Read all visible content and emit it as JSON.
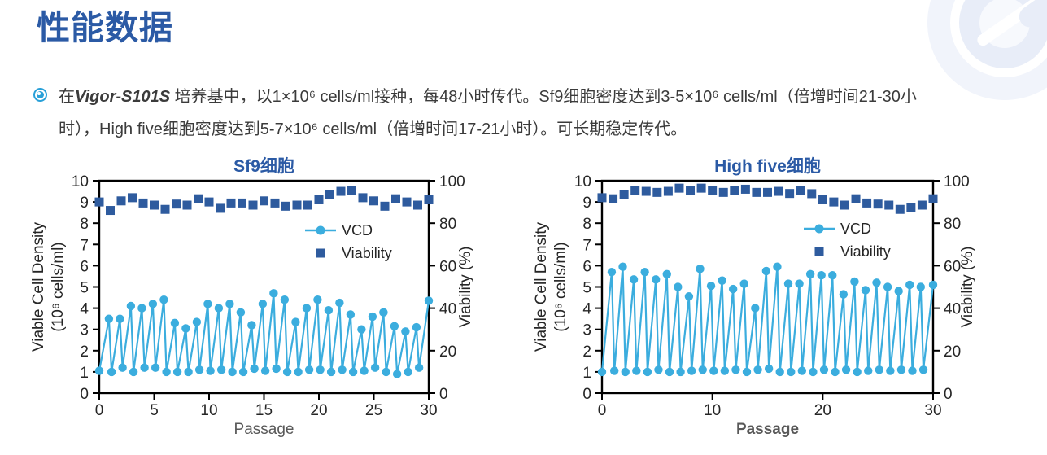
{
  "header": {
    "title": "性能数据"
  },
  "intro": {
    "prefix": "在",
    "brand": "Vigor-S101S",
    "rest": " 培养基中，以1×10⁶ cells/ml接种，每48小时传代。Sf9细胞密度达到3-5×10⁶ cells/ml（倍增时间21-30小时），High five细胞密度达到5-7×10⁶ cells/ml（倍增时间17-21小时）。可长期稳定传代。"
  },
  "colors": {
    "accent_blue": "#2b5aa5",
    "vcd_line": "#3badde",
    "viability_marker": "#2e5b9e",
    "axis": "#000000",
    "tick_label": "#262626",
    "xlabel_gray": "#595959",
    "bullet_icon": "#29a0d8"
  },
  "chart_data": [
    {
      "type": "line",
      "title": "Sf9细胞",
      "xlabel": "Passage",
      "ylabel_left_lines": [
        "Viable Cell Density",
        "(10⁶ cells/ml)"
      ],
      "ylabel_right": "Viability (%)",
      "xlim": [
        0,
        30
      ],
      "ylim_left": [
        0,
        10
      ],
      "ylim_right": [
        0,
        100
      ],
      "xticks": [
        0,
        5,
        10,
        15,
        20,
        25,
        30
      ],
      "yticks_left": [
        0,
        1,
        2,
        3,
        4,
        5,
        6,
        7,
        8,
        9,
        10
      ],
      "yticks_right": [
        0,
        20,
        40,
        60,
        80,
        100
      ],
      "grid": false,
      "legend_position": "inside-right",
      "series": [
        {
          "name": "VCD",
          "type": "line-markers",
          "axis": "left",
          "units": "10⁶ cells/ml",
          "seed_values": [
            1.05,
            1.0,
            1.2,
            1.0,
            1.2,
            1.2,
            1.0,
            1.0,
            1.0,
            1.1,
            1.05,
            1.1,
            1.0,
            1.0,
            1.15,
            1.05,
            1.15,
            1.0,
            1.0,
            1.1,
            1.1,
            1.0,
            1.1,
            1.0,
            1.05,
            1.2,
            1.0,
            0.9,
            1.0,
            1.2
          ],
          "peak_values": [
            3.5,
            3.5,
            4.1,
            4.0,
            4.2,
            4.4,
            3.3,
            3.05,
            3.35,
            4.2,
            4.0,
            4.2,
            3.8,
            3.2,
            4.2,
            4.7,
            4.4,
            3.35,
            4.0,
            4.4,
            3.9,
            4.25,
            3.7,
            3.0,
            3.6,
            3.8,
            3.15,
            2.9,
            3.1,
            4.35
          ]
        },
        {
          "name": "Viability",
          "type": "scatter-squares",
          "axis": "right",
          "units": "%",
          "x": [
            0,
            1,
            2,
            3,
            4,
            5,
            6,
            7,
            8,
            9,
            10,
            11,
            12,
            13,
            14,
            15,
            16,
            17,
            18,
            19,
            20,
            21,
            22,
            23,
            24,
            25,
            26,
            27,
            28,
            29,
            30
          ],
          "values": [
            90,
            86,
            90.5,
            92,
            89.5,
            88.5,
            86.5,
            89,
            88.5,
            91.5,
            90,
            87,
            89.5,
            89.5,
            88.5,
            90.5,
            89.5,
            88,
            88.5,
            88.5,
            91,
            93.5,
            95,
            95.5,
            92,
            90.5,
            88,
            91.5,
            90,
            88.5,
            91
          ]
        }
      ]
    },
    {
      "type": "line",
      "title": "High five细胞",
      "xlabel": "Passage",
      "ylabel_left_lines": [
        "Viable Cell Density",
        "(10⁶ cells/ml)"
      ],
      "ylabel_right": "Viability (%)",
      "xlim": [
        0,
        30
      ],
      "ylim_left": [
        0,
        10
      ],
      "ylim_right": [
        0,
        100
      ],
      "xticks": [
        0,
        10,
        20,
        30
      ],
      "yticks_left": [
        0,
        1,
        2,
        3,
        4,
        5,
        6,
        7,
        8,
        9,
        10
      ],
      "yticks_right": [
        0,
        20,
        40,
        60,
        80,
        100
      ],
      "grid": false,
      "legend_position": "inside-right",
      "series": [
        {
          "name": "VCD",
          "type": "line-markers",
          "axis": "left",
          "units": "10⁶ cells/ml",
          "seed_values": [
            1.0,
            1.05,
            1.0,
            1.05,
            1.0,
            1.1,
            1.0,
            1.0,
            1.05,
            1.1,
            1.05,
            1.05,
            1.1,
            1.0,
            1.1,
            1.15,
            1.0,
            1.0,
            1.05,
            1.0,
            1.1,
            1.0,
            1.1,
            1.0,
            1.05,
            1.1,
            1.05,
            1.1,
            1.05,
            1.1
          ],
          "peak_values": [
            5.7,
            5.95,
            5.35,
            5.7,
            5.35,
            5.6,
            5.0,
            4.55,
            5.85,
            5.05,
            5.3,
            4.9,
            5.15,
            4.0,
            5.75,
            5.95,
            5.15,
            5.15,
            5.6,
            5.55,
            5.55,
            4.65,
            5.25,
            4.85,
            5.2,
            5.0,
            4.8,
            5.1,
            5.0,
            5.1
          ]
        },
        {
          "name": "Viability",
          "type": "scatter-squares",
          "axis": "right",
          "units": "%",
          "x": [
            0,
            1,
            2,
            3,
            4,
            5,
            6,
            7,
            8,
            9,
            10,
            11,
            12,
            13,
            14,
            15,
            16,
            17,
            18,
            19,
            20,
            21,
            22,
            23,
            24,
            25,
            26,
            27,
            28,
            29,
            30
          ],
          "values": [
            92,
            91.5,
            93.5,
            95.5,
            95,
            94.5,
            95,
            96.5,
            95.5,
            96.5,
            95.5,
            94.5,
            95.5,
            96,
            94.5,
            94.5,
            95,
            94,
            95.5,
            93.9,
            91,
            90,
            88.5,
            91.5,
            89.5,
            89,
            88.5,
            86.5,
            87.5,
            88.5,
            91.5
          ]
        }
      ]
    }
  ]
}
